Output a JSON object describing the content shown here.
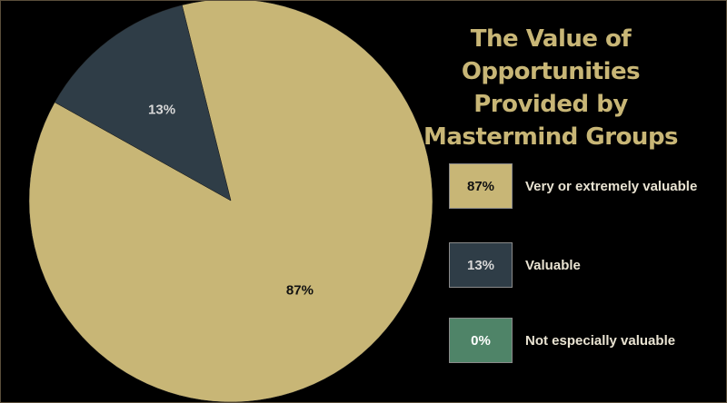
{
  "chart_data": {
    "type": "pie",
    "title_lines": [
      "The Value of Opportunities",
      "Provided by",
      "Mastermind Groups"
    ],
    "start_angle_deg": -14,
    "slices": [
      {
        "label": "Very or extremely valuable",
        "value": 87,
        "value_label": "87%",
        "color": "#c8b676",
        "text_color": "#111111"
      },
      {
        "label": "Valuable",
        "value": 13,
        "value_label": "13%",
        "color": "#2f3d47",
        "text_color": "#d8d8d8"
      },
      {
        "label": "Not especially valuable",
        "value": 0,
        "value_label": "0%",
        "color": "#4f8468",
        "text_color": "#ffffff"
      }
    ],
    "legend_position": "right"
  },
  "colors": {
    "background": "#000000",
    "title": "#c8b676",
    "legend_text": "#e9e3d2"
  }
}
